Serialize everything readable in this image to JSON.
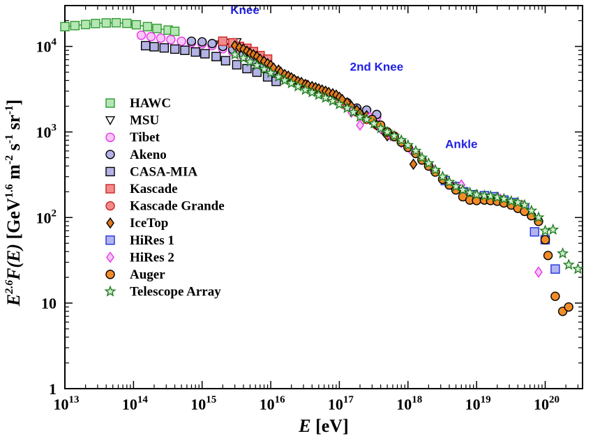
{
  "chart_data": {
    "type": "scatter",
    "xlabel_main": "E",
    "xlabel_unit": " [eV]",
    "ylabel_parts": [
      "E",
      "2.6",
      "F(E)",
      " [GeV",
      "1.6",
      " m",
      "-2",
      " s",
      "-1",
      " sr",
      "-1",
      "]"
    ],
    "x_log": true,
    "y_log": true,
    "xlim": [
      10000000000000.0,
      3.5e+20
    ],
    "ylim": [
      1,
      30000
    ],
    "x_ticks": [
      {
        "base": "10",
        "exp": "13"
      },
      {
        "base": "10",
        "exp": "14"
      },
      {
        "base": "10",
        "exp": "15"
      },
      {
        "base": "10",
        "exp": "16"
      },
      {
        "base": "10",
        "exp": "17"
      },
      {
        "base": "10",
        "exp": "18"
      },
      {
        "base": "10",
        "exp": "19"
      },
      {
        "base": "10",
        "exp": "20"
      }
    ],
    "y_ticks": [
      {
        "base": "1",
        "exp": ""
      },
      {
        "base": "10",
        "exp": ""
      },
      {
        "base": "10",
        "exp": "2"
      },
      {
        "base": "10",
        "exp": "3"
      },
      {
        "base": "10",
        "exp": "4"
      }
    ],
    "annotations": [
      {
        "text": "Knee",
        "x": 4200000000000000.0,
        "y": 24000
      },
      {
        "text": "2nd Knee",
        "x": 3.5e+17,
        "y": 5200
      },
      {
        "text": "Ankle",
        "x": 6e+18,
        "y": 650
      }
    ],
    "series": [
      {
        "name": "HAWC",
        "marker": "square",
        "stroke": "#2e9a2e",
        "fill": "#b5e6b5",
        "lines": true,
        "points": [
          [
            10000000000000.0,
            17000
          ],
          [
            14000000000000.0,
            17500
          ],
          [
            20000000000000.0,
            18000
          ],
          [
            28000000000000.0,
            18500
          ],
          [
            40000000000000.0,
            18800
          ],
          [
            56000000000000.0,
            18900
          ],
          [
            80000000000000.0,
            18600
          ],
          [
            110000000000000.0,
            17900
          ],
          [
            160000000000000.0,
            17000
          ],
          [
            220000000000000.0,
            16200
          ],
          [
            320000000000000.0,
            15500
          ],
          [
            400000000000000.0,
            15000
          ]
        ]
      },
      {
        "name": "MSU",
        "marker": "triangle-down",
        "stroke": "#000000",
        "fill": "none",
        "points": [
          [
            1500000000000000.0,
            10500
          ],
          [
            2000000000000000.0,
            10800
          ],
          [
            2500000000000000.0,
            11000
          ],
          [
            3200000000000000.0,
            11200
          ]
        ]
      },
      {
        "name": "Tibet",
        "marker": "circle",
        "stroke": "#e633e6",
        "fill": "#f7c8f7",
        "points": [
          [
            130000000000000.0,
            13500
          ],
          [
            180000000000000.0,
            13000
          ],
          [
            250000000000000.0,
            12500
          ],
          [
            350000000000000.0,
            12000
          ],
          [
            500000000000000.0,
            11500
          ],
          [
            700000000000000.0,
            11000
          ],
          [
            1000000000000000.0,
            10700
          ],
          [
            1400000000000000.0,
            10200
          ],
          [
            2000000000000000.0,
            9400
          ],
          [
            2800000000000000.0,
            8600
          ],
          [
            4000000000000000.0,
            7600
          ],
          [
            5600000000000000.0,
            6600
          ],
          [
            8000000000000000.0,
            5700
          ],
          [
            1.1e+16,
            4900
          ],
          [
            1.6e+16,
            4300
          ],
          [
            2.2e+16,
            3800
          ],
          [
            3.2e+16,
            3400
          ],
          [
            4.5e+16,
            3000
          ],
          [
            6.3e+16,
            2700
          ],
          [
            9e+16,
            2400
          ],
          [
            1.3e+17,
            2000
          ],
          [
            1.8e+17,
            1800
          ],
          [
            2.5e+17,
            1600
          ],
          [
            3.5e+17,
            1500
          ]
        ]
      },
      {
        "name": "Akeno",
        "marker": "circle",
        "stroke": "#000000",
        "fill": "#b3b3e6",
        "points": [
          [
            700000000000000.0,
            11500
          ],
          [
            1000000000000000.0,
            11300
          ],
          [
            1400000000000000.0,
            10800
          ],
          [
            2000000000000000.0,
            10000
          ],
          [
            2800000000000000.0,
            9200
          ],
          [
            4000000000000000.0,
            8000
          ],
          [
            5600000000000000.0,
            7000
          ],
          [
            8000000000000000.0,
            6000
          ],
          [
            1.1e+16,
            5200
          ],
          [
            1.6e+16,
            4500
          ],
          [
            2.2e+16,
            4000
          ],
          [
            3.2e+16,
            3600
          ],
          [
            4.5e+16,
            3200
          ],
          [
            6.3e+16,
            2800
          ],
          [
            9e+16,
            2500
          ],
          [
            1.3e+17,
            2200
          ],
          [
            1.8e+17,
            1900
          ],
          [
            2.5e+17,
            1800
          ],
          [
            3.5e+17,
            1600
          ]
        ]
      },
      {
        "name": "CASA-MIA",
        "marker": "square",
        "stroke": "#000000",
        "fill": "#b3b3e6",
        "points": [
          [
            150000000000000.0,
            10200
          ],
          [
            200000000000000.0,
            9900
          ],
          [
            280000000000000.0,
            9600
          ],
          [
            400000000000000.0,
            9300
          ],
          [
            560000000000000.0,
            9000
          ],
          [
            800000000000000.0,
            8600
          ],
          [
            1100000000000000.0,
            8200
          ],
          [
            1600000000000000.0,
            7600
          ],
          [
            2200000000000000.0,
            6800
          ],
          [
            3200000000000000.0,
            6100
          ],
          [
            4500000000000000.0,
            5500
          ],
          [
            6300000000000000.0,
            5000
          ],
          [
            9000000000000000.0,
            4400
          ],
          [
            1.2e+16,
            3900
          ]
        ]
      },
      {
        "name": "Kascade",
        "marker": "square",
        "stroke": "#cc2222",
        "fill": "#f28c8c",
        "points": [
          [
            2000000000000000.0,
            11500
          ],
          [
            2800000000000000.0,
            11000
          ],
          [
            3500000000000000.0,
            10000
          ],
          [
            4500000000000000.0,
            9500
          ],
          [
            5600000000000000.0,
            8700
          ],
          [
            7000000000000000.0,
            7800
          ],
          [
            9000000000000000.0,
            7100
          ]
        ]
      },
      {
        "name": "Kascade Grande",
        "marker": "circle",
        "stroke": "#cc2222",
        "fill": "#f28c8c",
        "points": [
          [
            1.6e+16,
            4500
          ],
          [
            2.2e+16,
            4000
          ],
          [
            3.2e+16,
            3600
          ],
          [
            4.5e+16,
            3200
          ],
          [
            6.3e+16,
            2800
          ],
          [
            9e+16,
            2400
          ],
          [
            1.3e+17,
            2000
          ],
          [
            1.8e+17,
            1700
          ],
          [
            2.5e+17,
            1400
          ],
          [
            3.5e+17,
            1200
          ],
          [
            5e+17,
            1000
          ],
          [
            6.3e+17,
            900
          ]
        ]
      },
      {
        "name": "IceTop",
        "marker": "diamond",
        "stroke": "#000000",
        "fill": "#e07b20",
        "points": [
          [
            3000000000000000.0,
            10200
          ],
          [
            3500000000000000.0,
            9700
          ],
          [
            4000000000000000.0,
            9300
          ],
          [
            4500000000000000.0,
            8800
          ],
          [
            5000000000000000.0,
            8300
          ],
          [
            5600000000000000.0,
            8000
          ],
          [
            6300000000000000.0,
            7600
          ],
          [
            7000000000000000.0,
            7100
          ],
          [
            8000000000000000.0,
            6700
          ],
          [
            9000000000000000.0,
            6300
          ],
          [
            1e+16,
            6000
          ],
          [
            1.1e+16,
            5600
          ],
          [
            1.3e+16,
            5300
          ],
          [
            1.4e+16,
            5000
          ],
          [
            1.6e+16,
            4700
          ],
          [
            1.8e+16,
            4500
          ],
          [
            2e+16,
            4300
          ],
          [
            2.2e+16,
            4100
          ],
          [
            2.5e+16,
            3900
          ],
          [
            2.8e+16,
            3800
          ],
          [
            3.2e+16,
            3600
          ],
          [
            3.5e+16,
            3500
          ],
          [
            4e+16,
            3400
          ],
          [
            4.5e+16,
            3300
          ],
          [
            5e+16,
            3200
          ],
          [
            5.6e+16,
            3100
          ],
          [
            6.3e+16,
            3000
          ],
          [
            7e+16,
            2900
          ],
          [
            8e+16,
            2800
          ],
          [
            9e+16,
            2700
          ],
          [
            1e+17,
            2550
          ],
          [
            1.1e+17,
            2400
          ],
          [
            1.3e+17,
            2200
          ],
          [
            1.5e+17,
            2000
          ],
          [
            1.8e+17,
            1800
          ],
          [
            2e+17,
            1650
          ],
          [
            2.5e+17,
            1550
          ],
          [
            2.8e+17,
            1400
          ],
          [
            3.2e+17,
            1300
          ],
          [
            3.5e+17,
            1200
          ],
          [
            4e+17,
            1100
          ],
          [
            4.5e+17,
            1000
          ],
          [
            5e+17,
            900
          ],
          [
            1.2e+18,
            420
          ]
        ]
      },
      {
        "name": "HiRes 1",
        "marker": "square",
        "stroke": "#2233dd",
        "fill": "#b3b3f2",
        "points": [
          [
            3.5e+18,
            270
          ],
          [
            5e+18,
            230
          ],
          [
            6.5e+18,
            200
          ],
          [
            9e+18,
            185
          ],
          [
            1.3e+19,
            180
          ],
          [
            1.8e+19,
            175
          ],
          [
            2.5e+19,
            160
          ],
          [
            3.5e+19,
            150
          ],
          [
            5e+19,
            130
          ],
          [
            7e+19,
            68
          ],
          [
            1e+20,
            55
          ],
          [
            1.4e+20,
            25
          ]
        ]
      },
      {
        "name": "HiRes 2",
        "marker": "diamond",
        "stroke": "#e633e6",
        "fill": "#f7c8f7",
        "points": [
          [
            1.5e+17,
            1700
          ],
          [
            2e+17,
            1200
          ],
          [
            2.8e+17,
            1500
          ],
          [
            4e+17,
            1100
          ],
          [
            5.6e+17,
            900
          ],
          [
            8e+17,
            750
          ],
          [
            1.1e+18,
            620
          ],
          [
            1.6e+18,
            480
          ],
          [
            2.2e+18,
            380
          ],
          [
            3.2e+18,
            290
          ],
          [
            4.5e+18,
            230
          ],
          [
            6e+18,
            240
          ],
          [
            8e+18,
            190
          ],
          [
            1.1e+19,
            170
          ],
          [
            1.6e+19,
            175
          ],
          [
            2.2e+19,
            165
          ],
          [
            3.2e+19,
            150
          ],
          [
            4.5e+19,
            140
          ],
          [
            8e+19,
            23
          ]
        ]
      },
      {
        "name": "Auger",
        "marker": "circle",
        "stroke": "#000000",
        "fill": "#f28c28",
        "points": [
          [
            3e+17,
            1400
          ],
          [
            4e+17,
            1200
          ],
          [
            5e+17,
            1000
          ],
          [
            6.3e+17,
            880
          ],
          [
            8e+17,
            760
          ],
          [
            1e+18,
            660
          ],
          [
            1.3e+18,
            560
          ],
          [
            1.6e+18,
            470
          ],
          [
            2e+18,
            400
          ],
          [
            2.5e+18,
            340
          ],
          [
            3.2e+18,
            280
          ],
          [
            4e+18,
            240
          ],
          [
            5e+18,
            210
          ],
          [
            6.3e+18,
            175
          ],
          [
            8e+18,
            160
          ],
          [
            1e+19,
            158
          ],
          [
            1.3e+19,
            160
          ],
          [
            1.6e+19,
            158
          ],
          [
            2e+19,
            155
          ],
          [
            2.5e+19,
            148
          ],
          [
            3.2e+19,
            140
          ],
          [
            4e+19,
            128
          ],
          [
            5e+19,
            118
          ],
          [
            6.3e+19,
            105
          ],
          [
            8e+19,
            90
          ],
          [
            1e+20,
            55
          ],
          [
            1.1e+20,
            36
          ],
          [
            1.4e+20,
            12
          ],
          [
            1.8e+20,
            8
          ],
          [
            2.2e+20,
            9
          ]
        ]
      },
      {
        "name": "Telescope Array",
        "marker": "star",
        "stroke": "#1f7a1f",
        "fill": "#cfeecf",
        "points": [
          [
            3000000000000000.0,
            8000
          ],
          [
            4000000000000000.0,
            7300
          ],
          [
            5000000000000000.0,
            6600
          ],
          [
            6300000000000000.0,
            6000
          ],
          [
            8000000000000000.0,
            5400
          ],
          [
            1e+16,
            4900
          ],
          [
            1.3e+16,
            4400
          ],
          [
            1.6e+16,
            4000
          ],
          [
            2e+16,
            3700
          ],
          [
            2.5e+16,
            3400
          ],
          [
            3.2e+16,
            3100
          ],
          [
            4e+16,
            2900
          ],
          [
            5e+16,
            2700
          ],
          [
            6.3e+16,
            2500
          ],
          [
            8e+16,
            2300
          ],
          [
            1e+17,
            2100
          ],
          [
            1.3e+17,
            1900
          ],
          [
            1.6e+17,
            1700
          ],
          [
            2e+17,
            1500
          ],
          [
            2.5e+17,
            1400
          ],
          [
            3.2e+17,
            1250
          ],
          [
            4e+17,
            1100
          ],
          [
            5e+17,
            1000
          ],
          [
            6.3e+17,
            900
          ],
          [
            8e+17,
            800
          ],
          [
            1e+18,
            700
          ],
          [
            1.3e+18,
            600
          ],
          [
            1.6e+18,
            500
          ],
          [
            2e+18,
            430
          ],
          [
            2.5e+18,
            360
          ],
          [
            3.2e+18,
            300
          ],
          [
            4e+18,
            260
          ],
          [
            5e+18,
            230
          ],
          [
            6.3e+18,
            210
          ],
          [
            8e+18,
            195
          ],
          [
            1e+19,
            185
          ],
          [
            1.3e+19,
            180
          ],
          [
            1.6e+19,
            178
          ],
          [
            2e+19,
            172
          ],
          [
            2.5e+19,
            165
          ],
          [
            3.2e+19,
            155
          ],
          [
            4e+19,
            150
          ],
          [
            5e+19,
            140
          ],
          [
            6.3e+19,
            120
          ],
          [
            8e+19,
            100
          ],
          [
            1e+20,
            70
          ],
          [
            1.3e+20,
            72
          ],
          [
            1.8e+20,
            38
          ],
          [
            2.2e+20,
            28
          ],
          [
            3e+20,
            25
          ]
        ]
      }
    ]
  }
}
